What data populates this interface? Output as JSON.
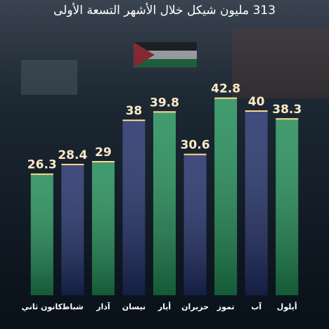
{
  "chart_data": {
    "type": "bar",
    "title": "313 مليون شيكل خلال الأشهر التسعة الأولى",
    "categories": [
      "كانون ثاني",
      "شباط",
      "آذار",
      "نيسان",
      "أيار",
      "حزيران",
      "تموز",
      "آب",
      "أيلول"
    ],
    "values": [
      26.3,
      28.4,
      29,
      38,
      39.8,
      30.6,
      42.8,
      40,
      38.3
    ],
    "colors": [
      "#1f8a55",
      "#1f2d66",
      "#1f8a55",
      "#1f2d66",
      "#1f8a55",
      "#1f2d66",
      "#1f8a55",
      "#1f2d66",
      "#1f8a55"
    ]
  }
}
